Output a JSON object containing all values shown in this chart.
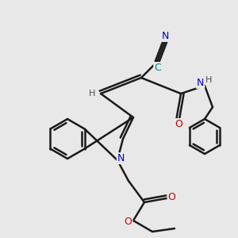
{
  "bg_color": "#e8e8e8",
  "bond_color": "#1a1a1a",
  "bond_width": 1.8,
  "N_color": "#0000cc",
  "O_color": "#cc0000",
  "H_color": "#4a4a4a",
  "C_color": "#008888",
  "figsize": [
    3.0,
    3.0
  ],
  "dpi": 100,
  "xlim": [
    0,
    10
  ],
  "ylim": [
    0,
    10
  ]
}
